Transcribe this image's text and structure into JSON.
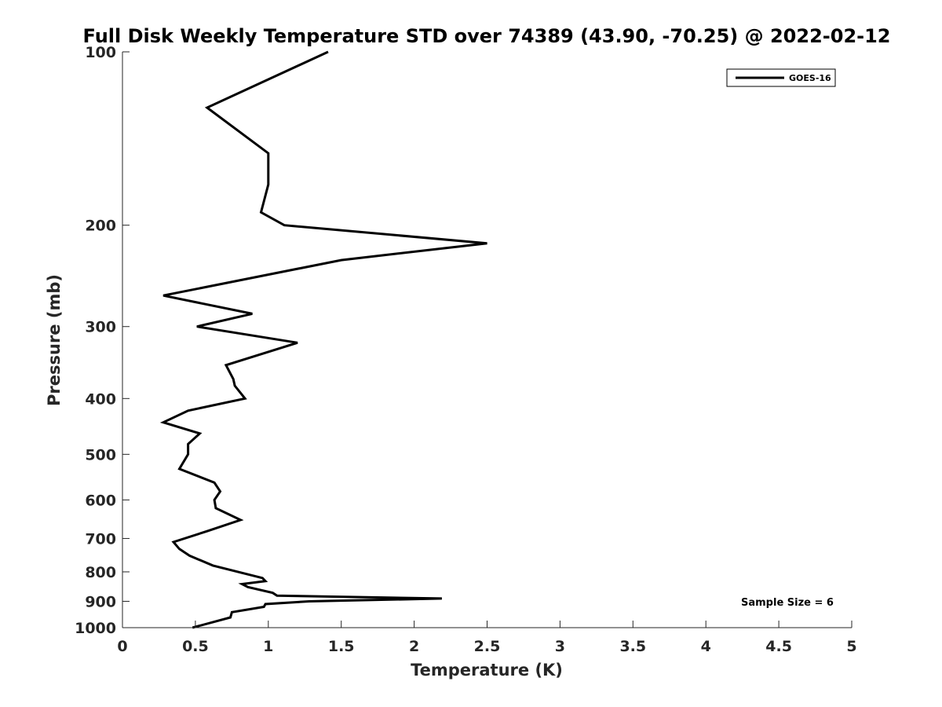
{
  "chart_data": {
    "type": "line",
    "title": "Full Disk Weekly Temperature STD over 74389 (43.90, -70.25) @ 2022-02-12",
    "xlabel": "Temperature (K)",
    "ylabel": "Pressure (mb)",
    "xlim": [
      0,
      5
    ],
    "ylim": [
      100,
      1000
    ],
    "y_scale": "log",
    "y_reversed": true,
    "grid": false,
    "x_ticks": [
      0,
      0.5,
      1,
      1.5,
      2,
      2.5,
      3,
      3.5,
      4,
      4.5,
      5
    ],
    "x_tick_labels": [
      "0",
      "0.5",
      "1",
      "1.5",
      "2",
      "2.5",
      "3",
      "3.5",
      "4",
      "4.5",
      "5"
    ],
    "y_ticks": [
      100,
      200,
      300,
      400,
      500,
      600,
      700,
      800,
      900,
      1000
    ],
    "y_tick_labels": [
      "100",
      "200",
      "300",
      "400",
      "500",
      "600",
      "700",
      "800",
      "900",
      "1000"
    ],
    "legend_position": "top-right",
    "annotation": "Sample Size = 6",
    "series": [
      {
        "name": "GOES-16",
        "color": "#000000",
        "points": [
          [
            1.41,
            100
          ],
          [
            0.58,
            125
          ],
          [
            1.0,
            150
          ],
          [
            1.0,
            170
          ],
          [
            0.95,
            190
          ],
          [
            1.11,
            200
          ],
          [
            2.5,
            215
          ],
          [
            1.5,
            230
          ],
          [
            0.28,
            265
          ],
          [
            0.89,
            285
          ],
          [
            0.51,
            300
          ],
          [
            1.2,
            320
          ],
          [
            0.71,
            350
          ],
          [
            0.76,
            370
          ],
          [
            0.77,
            380
          ],
          [
            0.84,
            400
          ],
          [
            0.45,
            420
          ],
          [
            0.28,
            440
          ],
          [
            0.53,
            460
          ],
          [
            0.45,
            480
          ],
          [
            0.45,
            500
          ],
          [
            0.39,
            530
          ],
          [
            0.63,
            560
          ],
          [
            0.67,
            580
          ],
          [
            0.63,
            600
          ],
          [
            0.64,
            620
          ],
          [
            0.81,
            650
          ],
          [
            0.58,
            680
          ],
          [
            0.35,
            710
          ],
          [
            0.39,
            730
          ],
          [
            0.46,
            750
          ],
          [
            0.62,
            780
          ],
          [
            0.96,
            820
          ],
          [
            0.98,
            830
          ],
          [
            0.82,
            840
          ],
          [
            0.86,
            850
          ],
          [
            1.03,
            870
          ],
          [
            1.06,
            880
          ],
          [
            2.19,
            890
          ],
          [
            1.28,
            900
          ],
          [
            0.98,
            910
          ],
          [
            0.97,
            920
          ],
          [
            0.75,
            940
          ],
          [
            0.74,
            960
          ],
          [
            0.48,
            1000
          ]
        ]
      }
    ]
  }
}
